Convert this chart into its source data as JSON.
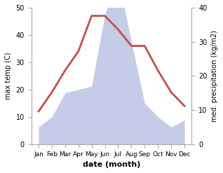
{
  "months": [
    "Jan",
    "Feb",
    "Mar",
    "Apr",
    "May",
    "Jun",
    "Jul",
    "Aug",
    "Sep",
    "Oct",
    "Nov",
    "Dec"
  ],
  "temp": [
    12,
    19,
    27,
    34,
    47,
    47,
    42,
    36,
    36,
    27,
    19,
    14
  ],
  "precip": [
    5,
    8,
    15,
    16,
    17,
    38,
    49,
    30,
    12,
    8,
    5,
    7
  ],
  "temp_color": "#c0504d",
  "precip_color": "#c5cce8",
  "precip_edge_color": "#c5cce8",
  "left_ylim": [
    0,
    50
  ],
  "right_ylim": [
    0,
    40
  ],
  "left_yticks": [
    0,
    10,
    20,
    30,
    40,
    50
  ],
  "right_yticks": [
    0,
    10,
    20,
    30,
    40
  ],
  "ylabel_left": "max temp (C)",
  "ylabel_right": "med. precipitation (kg/m2)",
  "xlabel": "date (month)",
  "bg_color": "#ffffff",
  "line_width": 2.0
}
